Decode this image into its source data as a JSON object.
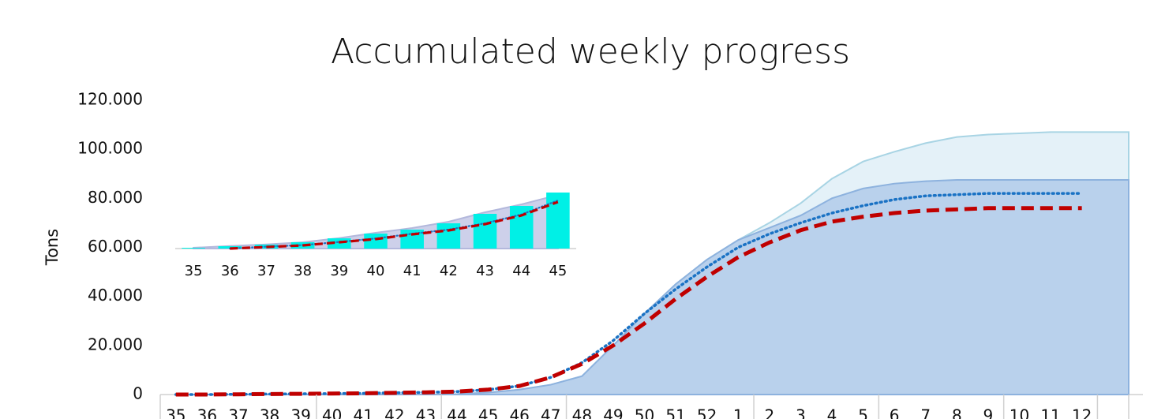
{
  "chart_data": [
    {
      "type": "combo",
      "title": "Accumulated weekly progress",
      "ylabel": "Tons",
      "categories": [
        "35",
        "36",
        "37",
        "38",
        "39",
        "40",
        "41",
        "42",
        "43",
        "44",
        "45",
        "46",
        "47",
        "48",
        "49",
        "50",
        "51",
        "52",
        "1",
        "2",
        "3",
        "4",
        "5",
        "6",
        "7",
        "8",
        "9",
        "10",
        "11",
        "12",
        null
      ],
      "ylim": [
        0,
        120000
      ],
      "yticks": [
        0,
        {
          "value": 20000,
          "label": "20.000"
        },
        {
          "value": 40000,
          "label": "40.000"
        },
        {
          "value": 60000,
          "label": "60.000"
        },
        {
          "value": 80000,
          "label": "80.000"
        },
        {
          "value": 100000,
          "label": "100.000"
        },
        {
          "value": 120000,
          "label": "120.000"
        }
      ],
      "series": [
        {
          "type": "area",
          "color": "#e4f1f8",
          "edge": "#a8d4e4",
          "values": [
            0,
            0,
            0,
            0,
            0,
            0,
            0,
            0,
            0,
            200,
            800,
            2000,
            4000,
            7500,
            20000,
            33000,
            45000,
            55000,
            63000,
            70000,
            78000,
            88000,
            95000,
            99000,
            102500,
            105000,
            106000,
            106500,
            107000,
            107000,
            107000
          ]
        },
        {
          "type": "area",
          "color": "#b9d1ec",
          "edge": "#8db2de",
          "values": [
            0,
            0,
            0,
            0,
            0,
            0,
            0,
            0,
            0,
            200,
            800,
            2000,
            4000,
            7500,
            20000,
            33000,
            45000,
            55000,
            63000,
            68000,
            73000,
            80000,
            84000,
            86000,
            87000,
            87500,
            87500,
            87500,
            87500,
            87500,
            87500
          ]
        },
        {
          "type": "line",
          "dash": "dotted",
          "color": "#1a72c4",
          "values": [
            0,
            0,
            100,
            200,
            300,
            400,
            500,
            700,
            900,
            1200,
            2000,
            3500,
            7000,
            13000,
            22000,
            33000,
            43000,
            52000,
            60000,
            65500,
            70000,
            74000,
            77000,
            79500,
            81000,
            81500,
            82000,
            82000,
            82000,
            82000,
            null
          ]
        },
        {
          "type": "line",
          "dash": "dashed",
          "color": "#c00000",
          "values": [
            0,
            0,
            100,
            200,
            300,
            400,
            500,
            700,
            900,
            1200,
            2000,
            3500,
            7000,
            12500,
            20000,
            29000,
            39000,
            48000,
            56000,
            62000,
            67000,
            70500,
            72500,
            74000,
            75000,
            75500,
            76000,
            76000,
            76000,
            76000,
            null
          ]
        }
      ]
    },
    {
      "type": "combo",
      "categories": [
        "35",
        "36",
        "37",
        "38",
        "39",
        "40",
        "41",
        "42",
        "43",
        "44",
        "45"
      ],
      "ylim": [
        0,
        2000
      ],
      "series": [
        {
          "type": "area",
          "color": "#cdd0ea",
          "edge": "#b3b8dc",
          "values": [
            25,
            80,
            130,
            200,
            330,
            500,
            650,
            850,
            1150,
            1400,
            1700
          ]
        },
        {
          "type": "bar",
          "color": "#00f0e6",
          "values": [
            25,
            75,
            125,
            200,
            325,
            475,
            600,
            800,
            1100,
            1350,
            1775
          ]
        },
        {
          "type": "line",
          "dash": "dotted",
          "color": "#1a72c4",
          "values": [
            null,
            0,
            60,
            110,
            210,
            320,
            470,
            600,
            800,
            1080,
            1525
          ]
        },
        {
          "type": "line",
          "dash": "dashed",
          "color": "#c00000",
          "values": [
            null,
            0,
            50,
            100,
            200,
            300,
            450,
            575,
            775,
            1050,
            1475
          ]
        }
      ]
    }
  ]
}
